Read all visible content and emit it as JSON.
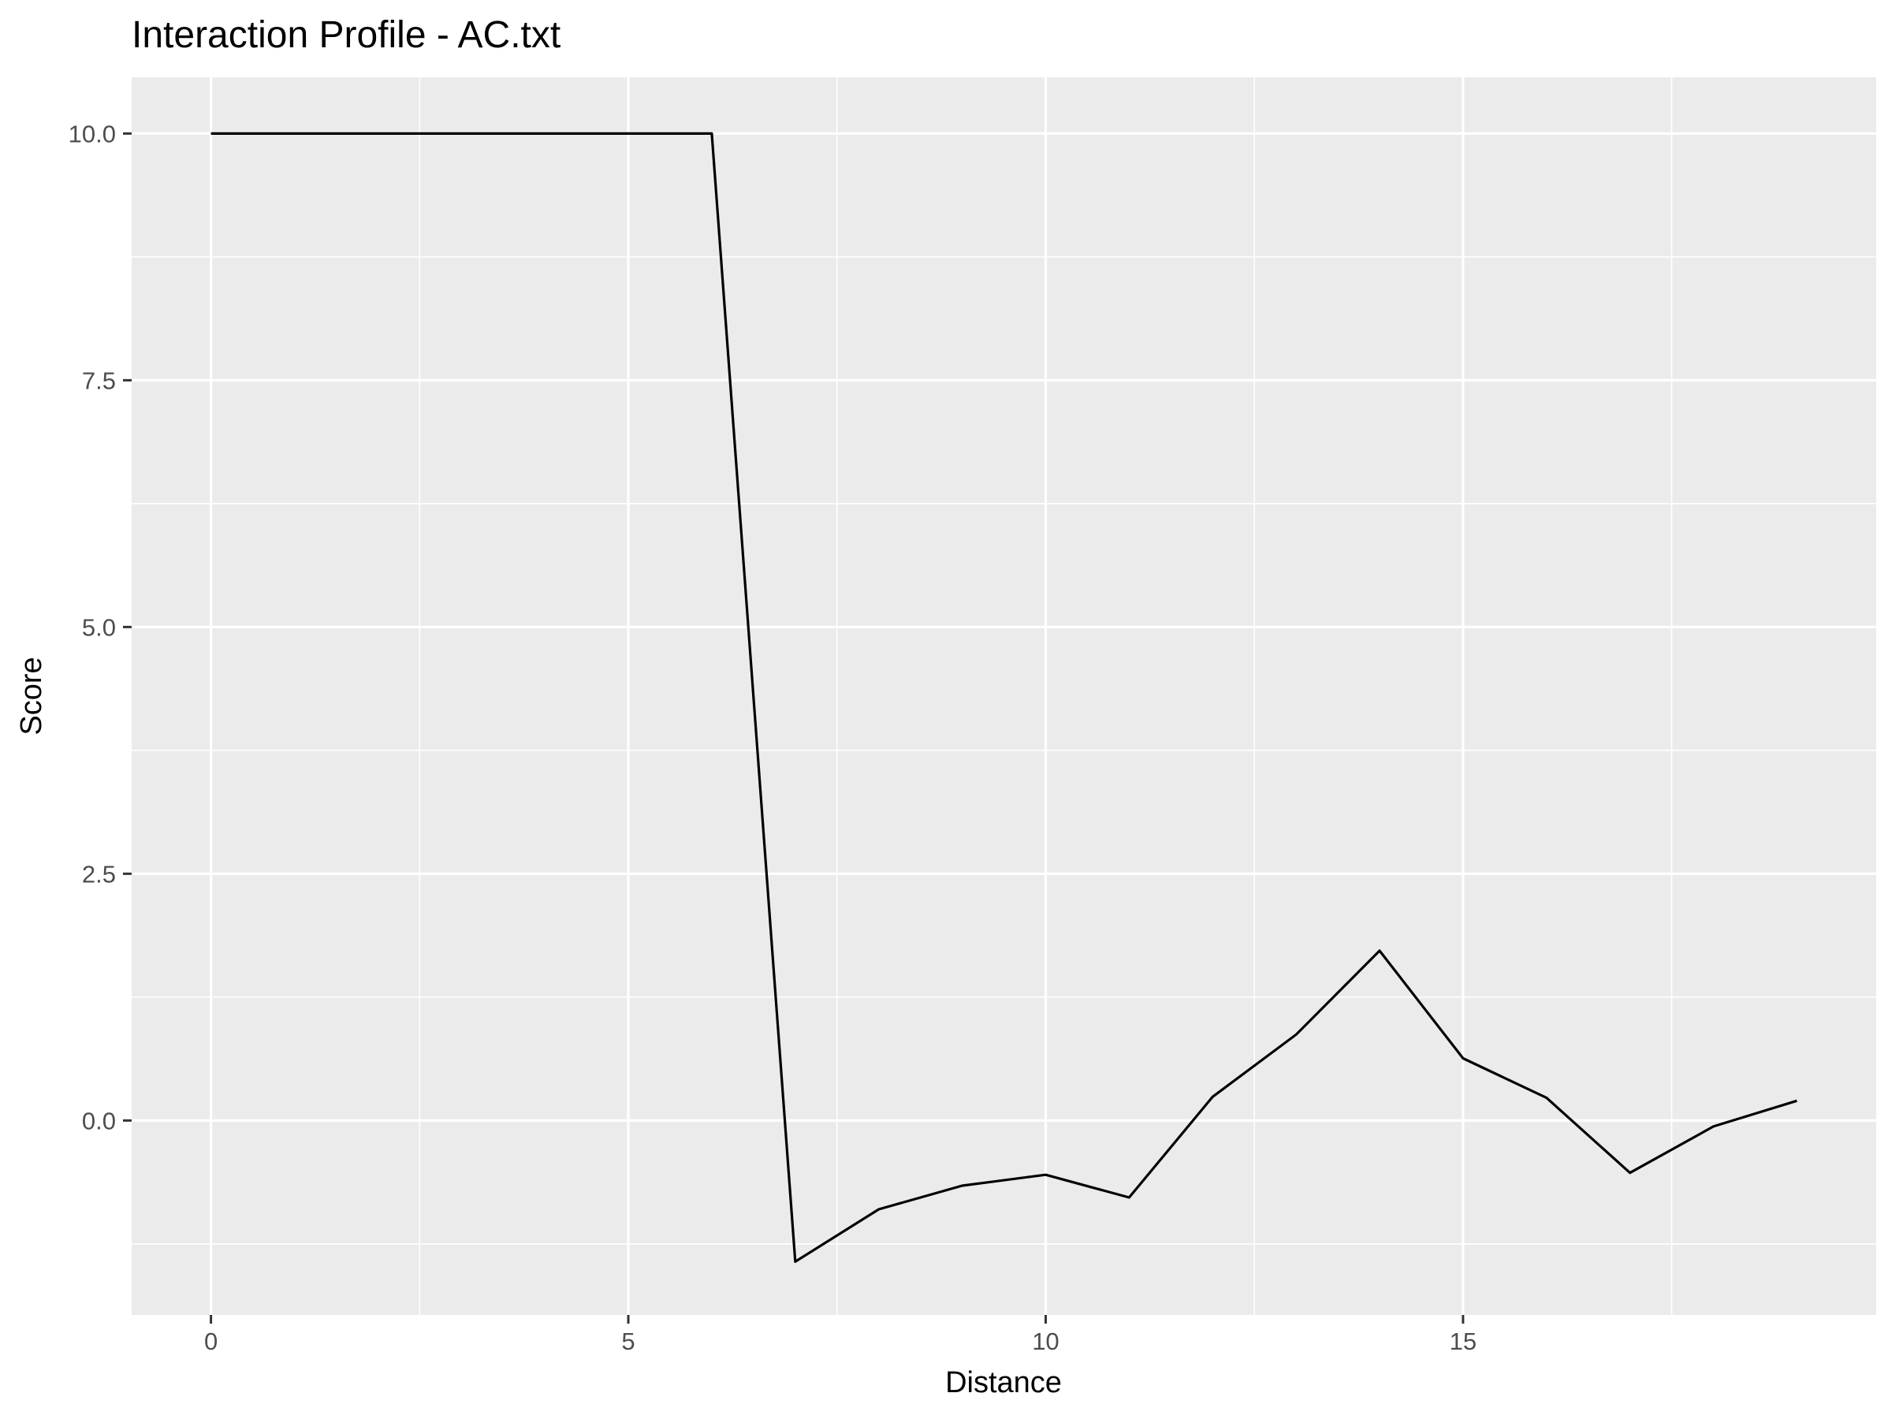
{
  "chart_data": {
    "type": "line",
    "title": "Interaction Profile - AC.txt",
    "xlabel": "Distance",
    "ylabel": "Score",
    "xlim": [
      -0.95,
      19.95
    ],
    "ylim": [
      -1.97,
      10.57
    ],
    "x_ticks": [
      0,
      5,
      10,
      15
    ],
    "x_tick_labels": [
      "0",
      "5",
      "10",
      "15"
    ],
    "x_minor_ticks": [
      2.5,
      7.5,
      12.5,
      17.5
    ],
    "y_ticks": [
      0,
      2.5,
      5,
      7.5,
      10
    ],
    "y_tick_labels": [
      "0.0",
      "2.5",
      "5.0",
      "7.5",
      "10.0"
    ],
    "y_minor_ticks": [
      -1.25,
      1.25,
      3.75,
      6.25,
      8.75
    ],
    "grid": true,
    "series": [
      {
        "color": "#000000",
        "x": [
          0,
          1,
          2,
          3,
          4,
          5,
          6,
          7,
          8,
          9,
          10,
          11,
          12,
          13,
          14,
          15,
          16,
          17,
          18,
          19
        ],
        "y": [
          10,
          10,
          10,
          10,
          10,
          10,
          10,
          -1.43,
          -0.9,
          -0.66,
          -0.55,
          -0.78,
          0.24,
          0.87,
          1.72,
          0.63,
          0.23,
          -0.53,
          -0.06,
          0.2
        ]
      }
    ]
  }
}
